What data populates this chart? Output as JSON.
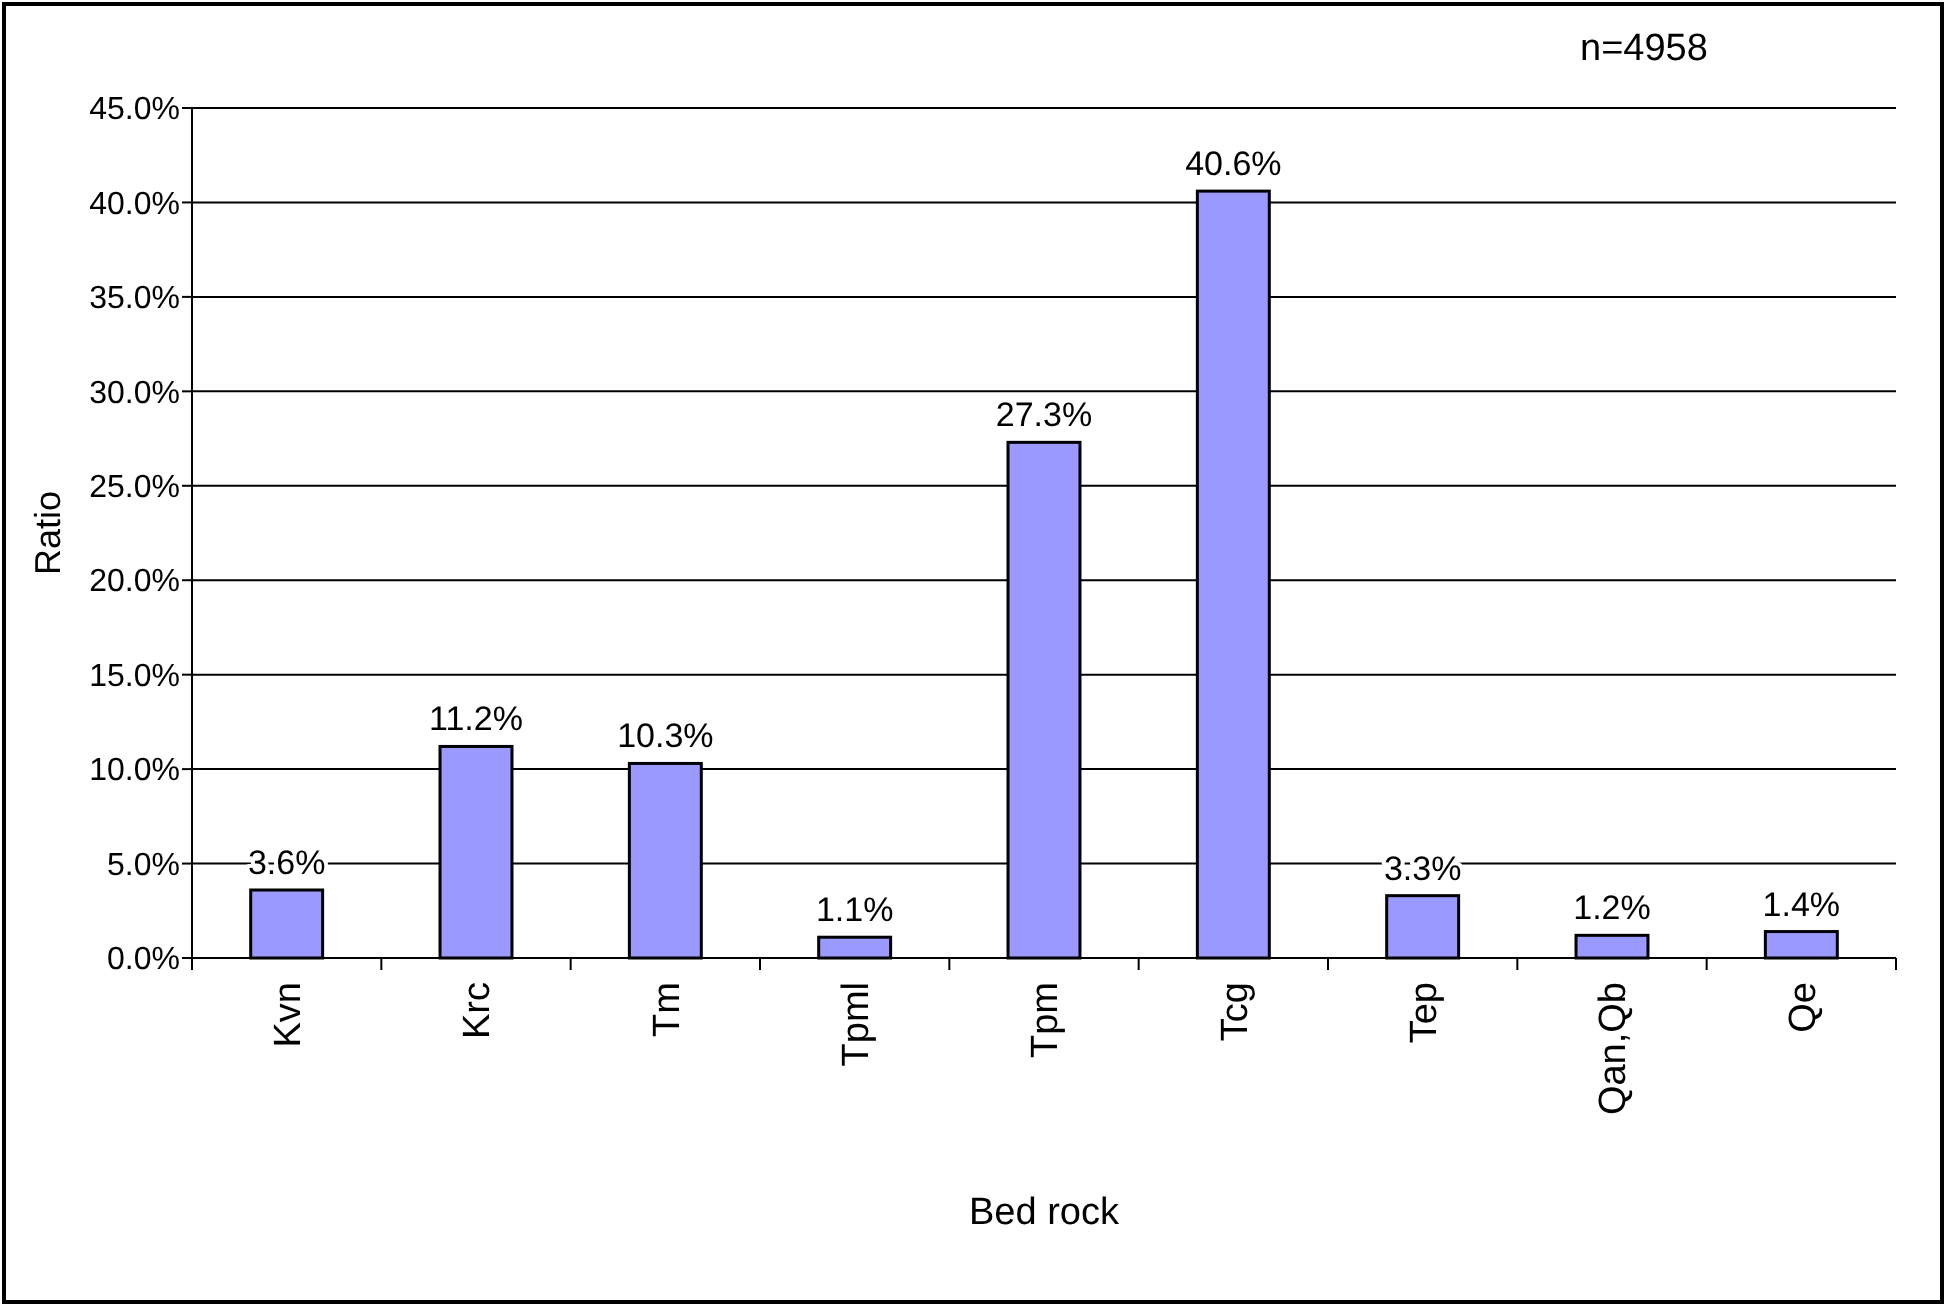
{
  "chart_data": {
    "type": "bar",
    "xlabel": "Bed rock",
    "ylabel": "Ratio",
    "categories": [
      "Kvn",
      "Krc",
      "Tm",
      "Tpml",
      "Tpm",
      "Tcg",
      "Tep",
      "Qan,Qb",
      "Qe"
    ],
    "values": [
      3.6,
      11.2,
      10.3,
      1.1,
      27.3,
      40.6,
      3.3,
      1.2,
      1.4
    ],
    "value_labels": [
      "3.6%",
      "11.2%",
      "10.3%",
      "1.1%",
      "27.3%",
      "40.6%",
      "3.3%",
      "1.2%",
      "1.4%"
    ],
    "color": "#9999ff",
    "ylim": [
      0,
      45
    ],
    "yticks": [
      {
        "value": 0,
        "label": "0.0%"
      },
      {
        "value": 5,
        "label": "5.0%"
      },
      {
        "value": 10,
        "label": "10.0%"
      },
      {
        "value": 15,
        "label": "15.0%"
      },
      {
        "value": 20,
        "label": "20.0%"
      },
      {
        "value": 25,
        "label": "25.0%"
      },
      {
        "value": 30,
        "label": "30.0%"
      },
      {
        "value": 35,
        "label": "35.0%"
      },
      {
        "value": 40,
        "label": "40.0%"
      },
      {
        "value": 45,
        "label": "45.0%"
      }
    ],
    "grid": "y",
    "annotations": [
      "n=4958"
    ]
  }
}
